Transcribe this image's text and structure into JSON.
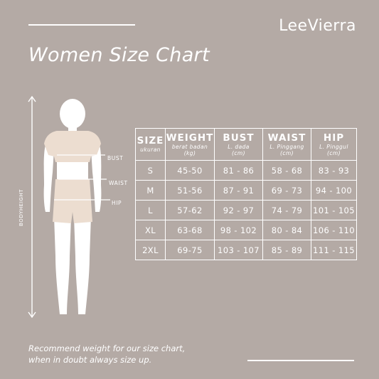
{
  "brand": "LeeVierra",
  "title": "Women Size Chart",
  "figure": {
    "height_label": "BODYHEIGHT",
    "bust_label": "BUST",
    "waist_label": "WAIST",
    "hip_label": "HIP"
  },
  "table": {
    "headers": [
      {
        "main": "SIZE",
        "sub": "ukuran",
        "unit": ""
      },
      {
        "main": "WEIGHT",
        "sub": "berat badan",
        "unit": "(kg)"
      },
      {
        "main": "BUST",
        "sub": "L. dada",
        "unit": "(cm)"
      },
      {
        "main": "WAIST",
        "sub": "L. Pinggang",
        "unit": "(cm)"
      },
      {
        "main": "HIP",
        "sub": "L. Pinggul",
        "unit": "(cm)"
      }
    ],
    "rows": [
      [
        "S",
        "45-50",
        "81 - 86",
        "58 - 68",
        "83 - 93"
      ],
      [
        "M",
        "51-56",
        "87 - 91",
        "69 - 73",
        "94 - 100"
      ],
      [
        "L",
        "57-62",
        "92 - 97",
        "74 - 79",
        "101 - 105"
      ],
      [
        "XL",
        "63-68",
        "98 - 102",
        "80 - 84",
        "106 - 110"
      ],
      [
        "2XL",
        "69-75",
        "103 - 107",
        "85 - 89",
        "111 - 115"
      ]
    ]
  },
  "note": {
    "line1": "Recommend weight for our size chart,",
    "line2": "when in doubt always size up."
  },
  "colors": {
    "background": "#b4aaa5",
    "figure_skin": "#ffffff",
    "figure_clothes": "#ecddd0",
    "text": "#ffffff"
  }
}
